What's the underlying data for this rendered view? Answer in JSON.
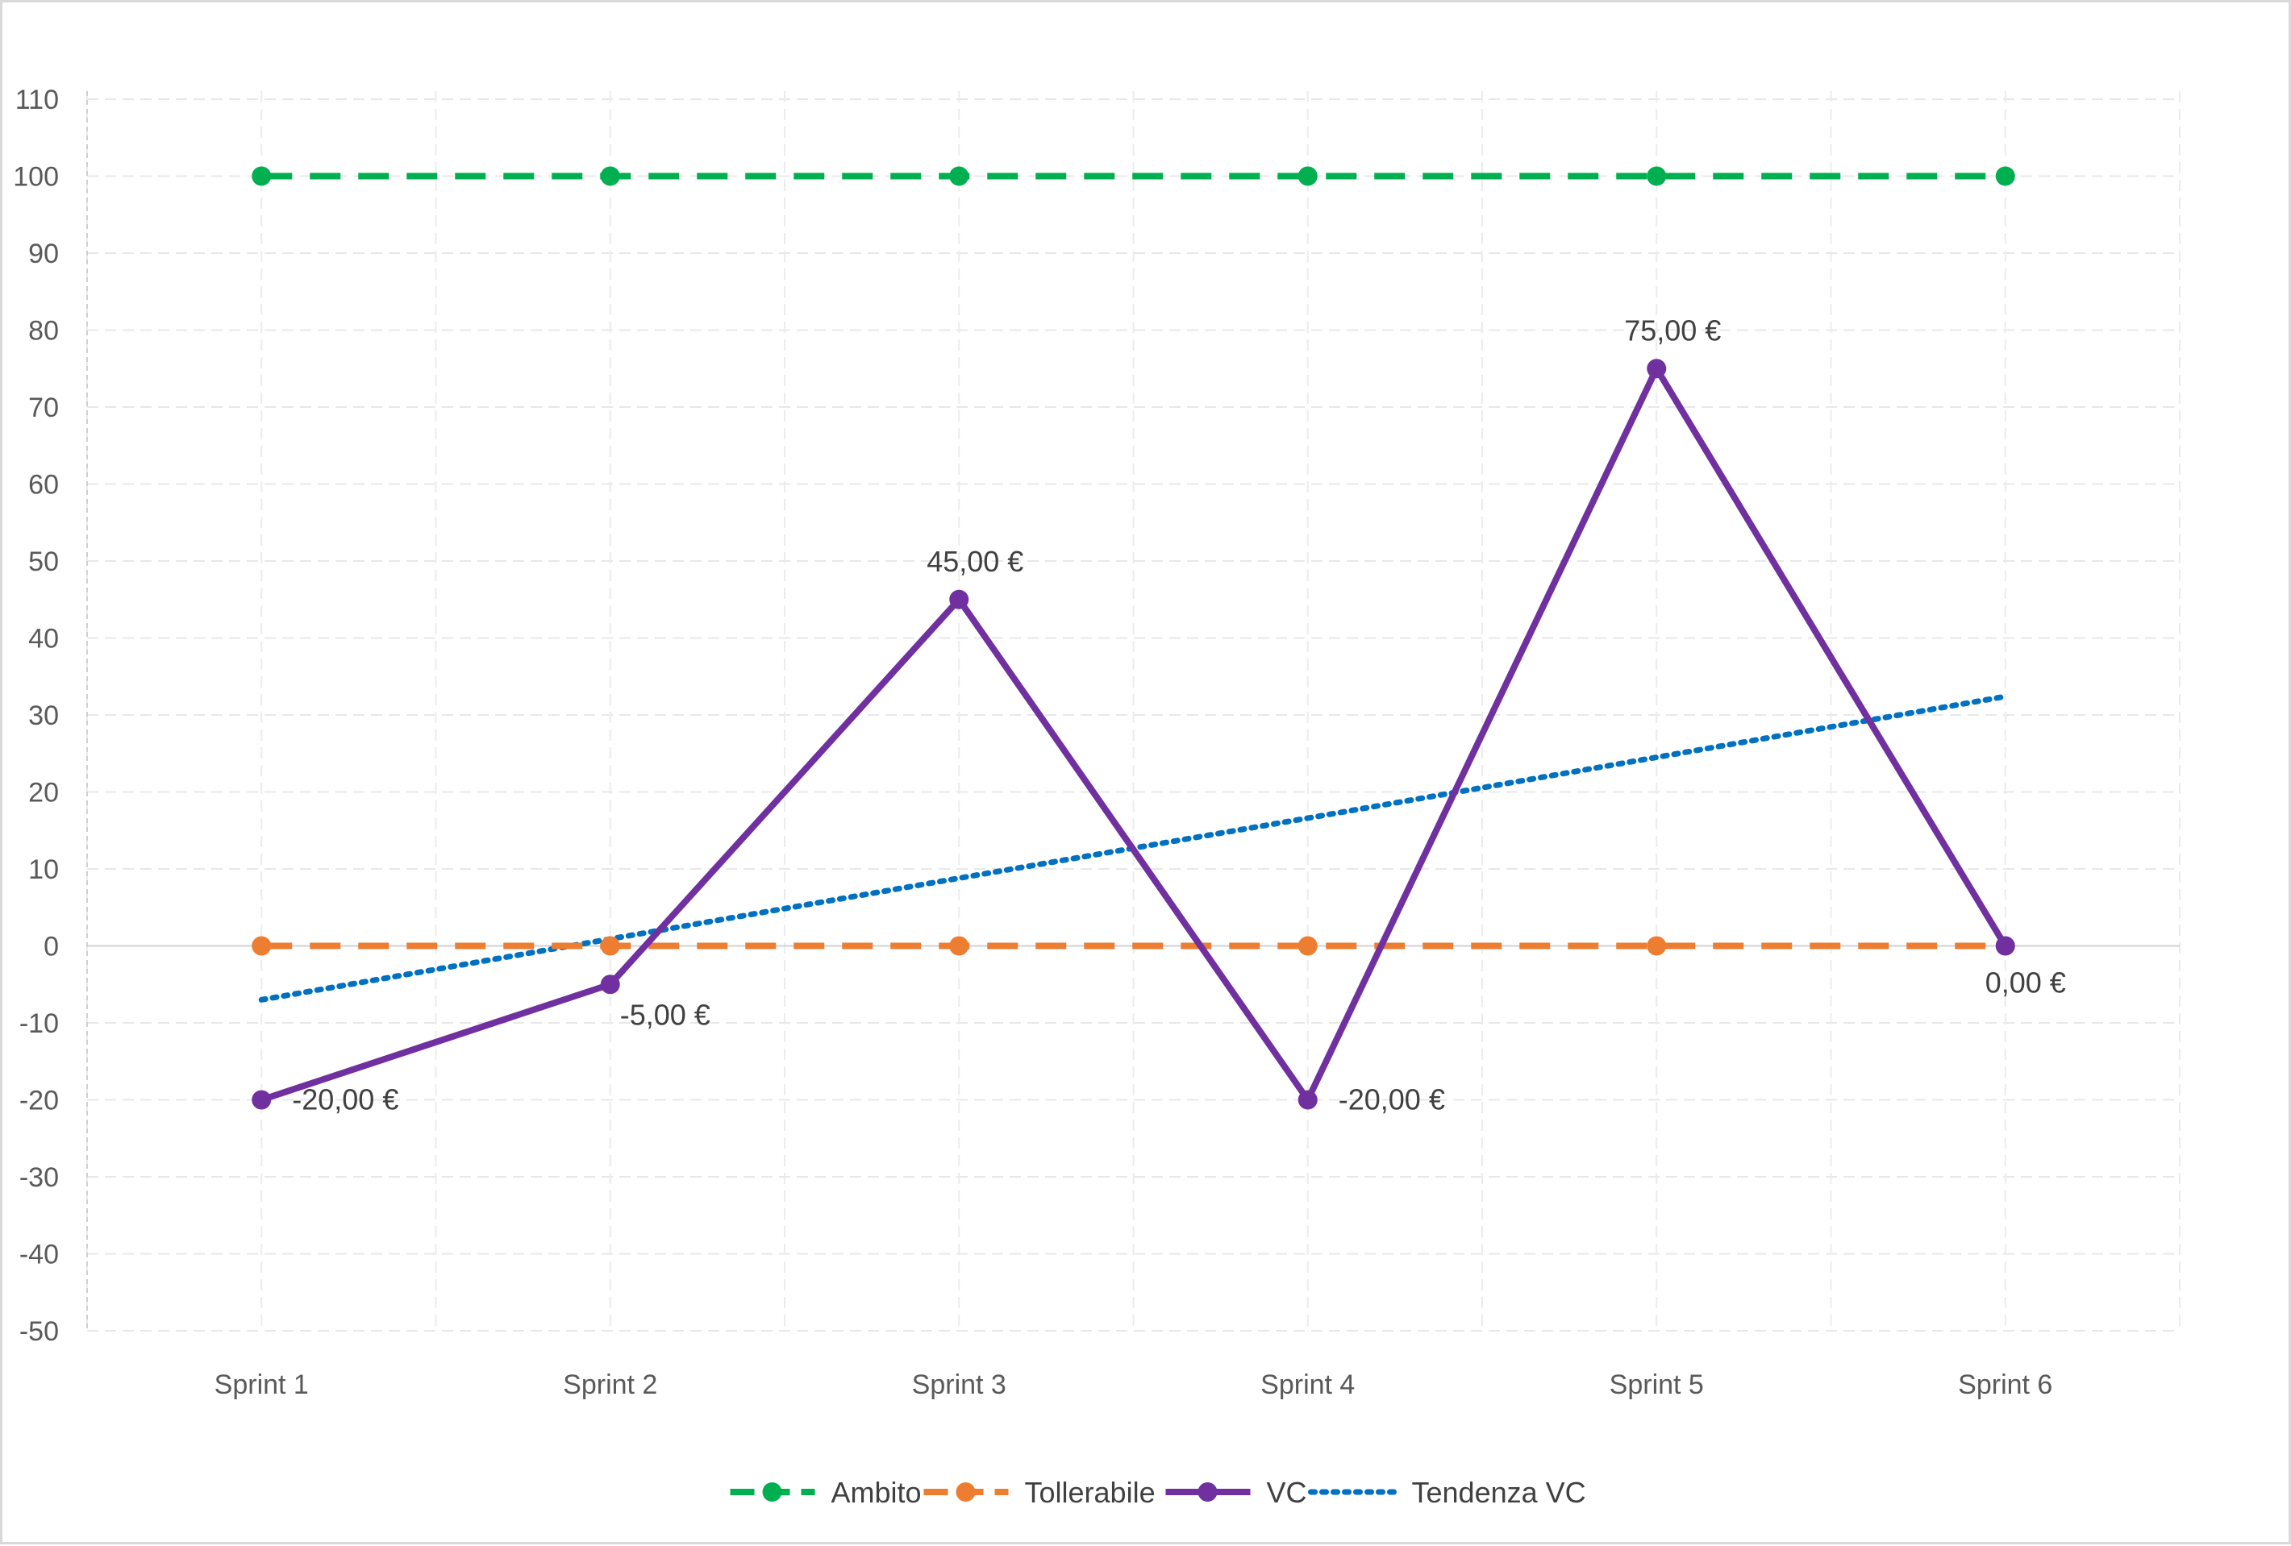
{
  "chart_data": {
    "type": "line",
    "title": "",
    "xlabel": "",
    "ylabel": "",
    "categories": [
      "Sprint 1",
      "Sprint 2",
      "Sprint 3",
      "Sprint 4",
      "Sprint 5",
      "Sprint 6"
    ],
    "ylim": [
      -50,
      110
    ],
    "y_ticks": [
      110,
      100,
      90,
      80,
      70,
      60,
      50,
      40,
      30,
      20,
      10,
      0,
      -10,
      -20,
      -30,
      -40,
      -50
    ],
    "grid": true,
    "legend_position": "bottom",
    "series": [
      {
        "name": "Ambito",
        "values": [
          100,
          100,
          100,
          100,
          100,
          100
        ],
        "color": "#00b050",
        "line_style": "dashed",
        "markers": true
      },
      {
        "name": "Tollerabile",
        "values": [
          0,
          0,
          0,
          0,
          0,
          0
        ],
        "color": "#ed7d31",
        "line_style": "dashed",
        "markers": true
      },
      {
        "name": "VC",
        "values": [
          -20,
          -5,
          45,
          -20,
          75,
          0
        ],
        "data_labels": [
          "-20,00 €",
          "-5,00 €",
          "45,00 €",
          "-20,00 €",
          "75,00 €",
          "0,00 €"
        ],
        "color": "#7030a0",
        "line_style": "solid",
        "markers": true
      },
      {
        "name": "Tendenza VC",
        "type": "linear-trendline",
        "values": [
          -7,
          0.9,
          8.8,
          16.6,
          24.5,
          32.4
        ],
        "color": "#0070c0",
        "line_style": "dotted",
        "markers": false
      }
    ]
  }
}
